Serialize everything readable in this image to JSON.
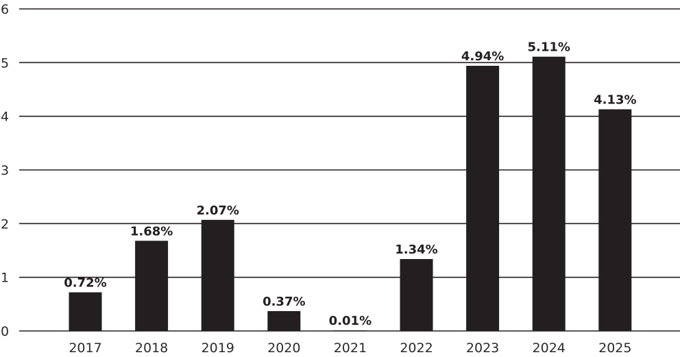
{
  "chart_data": {
    "type": "bar",
    "categories": [
      "2017",
      "2018",
      "2019",
      "2020",
      "2021",
      "2022",
      "2023",
      "2024",
      "2025"
    ],
    "values": [
      0.72,
      1.68,
      2.07,
      0.37,
      0.01,
      1.34,
      4.94,
      5.11,
      4.13
    ],
    "data_labels": [
      "0.72%",
      "1.68%",
      "2.07%",
      "0.37%",
      "0.01%",
      "1.34%",
      "4.94%",
      "5.11%",
      "4.13%"
    ],
    "title": "",
    "xlabel": "",
    "ylabel": "",
    "ylim": [
      0,
      6
    ],
    "yticks": [
      "0",
      "1",
      "2",
      "3",
      "4",
      "5",
      "6"
    ],
    "grid": true,
    "colors": {
      "bar": "#231f20",
      "grid": "#231f20",
      "text": "#2a2a2a"
    }
  }
}
